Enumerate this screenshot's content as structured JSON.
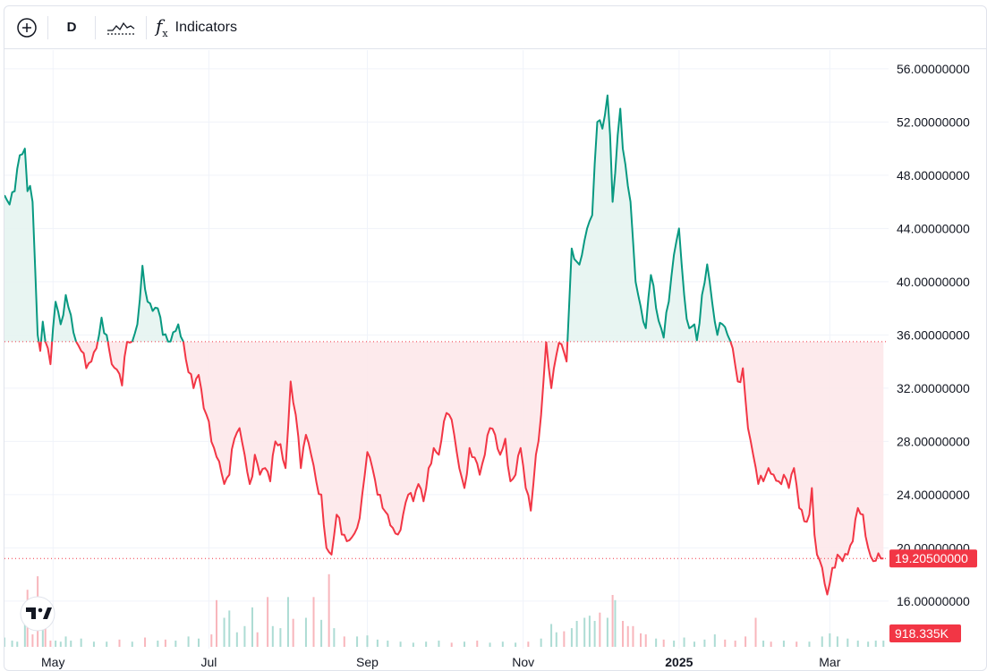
{
  "toolbar": {
    "interval_label": "D",
    "indicators_label": "Indicators",
    "icons": [
      "plus-circle-icon",
      "compare-icon",
      "fx-icon"
    ]
  },
  "colors": {
    "up": "#089981",
    "down": "#f23645",
    "up_fill": "#e6f4f1",
    "down_fill": "#fde8ea",
    "grid": "#f0f3fa",
    "border": "#e0e3eb"
  },
  "logo": {
    "name": "tradingview-logo"
  },
  "chart_data": {
    "type": "line",
    "title": "",
    "baseline": 35.5,
    "last_price_label": "19.20500000",
    "last_price": 19.205,
    "volume_label": "918.335K",
    "y_ticks": [
      "56.00000000",
      "52.00000000",
      "48.00000000",
      "44.00000000",
      "40.00000000",
      "36.00000000",
      "32.00000000",
      "28.00000000",
      "24.00000000",
      "20.00000000",
      "16.00000000"
    ],
    "ylim": [
      12.5,
      57.4
    ],
    "x_ticks": [
      "May",
      "Jul",
      "Sep",
      "Nov",
      "2025",
      "Mar"
    ],
    "x_tick_days": [
      19,
      80,
      142,
      203,
      264,
      323
    ],
    "x_bold": [
      false,
      false,
      false,
      false,
      true,
      false
    ],
    "xlim": [
      0,
      346
    ],
    "keypoints": [
      [
        0,
        46.5
      ],
      [
        2,
        45.8
      ],
      [
        4,
        46.8
      ],
      [
        6,
        49.5
      ],
      [
        8,
        50.0
      ],
      [
        9,
        46.8
      ],
      [
        10,
        47.2
      ],
      [
        11,
        46.0
      ],
      [
        12,
        41.0
      ],
      [
        13,
        36.0
      ],
      [
        14,
        34.8
      ],
      [
        15,
        37.0
      ],
      [
        16,
        35.5
      ],
      [
        17,
        35.0
      ],
      [
        18,
        33.8
      ],
      [
        20,
        38.5
      ],
      [
        22,
        36.8
      ],
      [
        24,
        39.0
      ],
      [
        26,
        37.5
      ],
      [
        28,
        35.5
      ],
      [
        30,
        34.8
      ],
      [
        32,
        33.5
      ],
      [
        34,
        34.0
      ],
      [
        36,
        35.0
      ],
      [
        38,
        37.3
      ],
      [
        40,
        36.0
      ],
      [
        42,
        33.8
      ],
      [
        44,
        33.4
      ],
      [
        46,
        32.2
      ],
      [
        48,
        35.5
      ],
      [
        50,
        35.5
      ],
      [
        52,
        36.8
      ],
      [
        54,
        41.2
      ],
      [
        56,
        38.5
      ],
      [
        58,
        37.8
      ],
      [
        60,
        38.0
      ],
      [
        62,
        36.0
      ],
      [
        64,
        35.5
      ],
      [
        66,
        36.2
      ],
      [
        68,
        36.8
      ],
      [
        70,
        35.5
      ],
      [
        72,
        33.2
      ],
      [
        74,
        32.0
      ],
      [
        76,
        33.0
      ],
      [
        78,
        30.5
      ],
      [
        80,
        29.5
      ],
      [
        82,
        27.5
      ],
      [
        84,
        26.5
      ],
      [
        86,
        24.8
      ],
      [
        88,
        25.5
      ],
      [
        90,
        28.2
      ],
      [
        92,
        29.0
      ],
      [
        94,
        27.0
      ],
      [
        96,
        24.8
      ],
      [
        98,
        27.0
      ],
      [
        100,
        25.5
      ],
      [
        102,
        26.0
      ],
      [
        104,
        25.0
      ],
      [
        106,
        28.0
      ],
      [
        108,
        27.8
      ],
      [
        110,
        26.0
      ],
      [
        112,
        32.5
      ],
      [
        114,
        30.0
      ],
      [
        116,
        26.0
      ],
      [
        118,
        28.5
      ],
      [
        120,
        27.0
      ],
      [
        122,
        25.0
      ],
      [
        124,
        24.0
      ],
      [
        126,
        20.0
      ],
      [
        128,
        19.5
      ],
      [
        130,
        22.5
      ],
      [
        132,
        21.0
      ],
      [
        134,
        20.5
      ],
      [
        136,
        20.8
      ],
      [
        138,
        21.5
      ],
      [
        140,
        24.0
      ],
      [
        142,
        27.2
      ],
      [
        144,
        26.0
      ],
      [
        146,
        24.0
      ],
      [
        148,
        23.0
      ],
      [
        150,
        22.5
      ],
      [
        152,
        21.5
      ],
      [
        154,
        21.0
      ],
      [
        156,
        22.5
      ],
      [
        158,
        24.0
      ],
      [
        160,
        23.5
      ],
      [
        162,
        24.8
      ],
      [
        164,
        23.5
      ],
      [
        166,
        26.0
      ],
      [
        168,
        27.5
      ],
      [
        170,
        27.0
      ],
      [
        172,
        29.5
      ],
      [
        174,
        30.0
      ],
      [
        176,
        28.5
      ],
      [
        178,
        26.0
      ],
      [
        180,
        24.5
      ],
      [
        182,
        27.5
      ],
      [
        184,
        26.8
      ],
      [
        186,
        25.5
      ],
      [
        188,
        27.0
      ],
      [
        190,
        29.0
      ],
      [
        192,
        28.5
      ],
      [
        194,
        27.0
      ],
      [
        196,
        28.2
      ],
      [
        198,
        25.0
      ],
      [
        200,
        25.5
      ],
      [
        202,
        27.5
      ],
      [
        204,
        24.5
      ],
      [
        206,
        22.8
      ],
      [
        208,
        27.0
      ],
      [
        210,
        30.0
      ],
      [
        212,
        35.5
      ],
      [
        214,
        32.0
      ],
      [
        216,
        34.5
      ],
      [
        218,
        35.3
      ],
      [
        220,
        34.0
      ],
      [
        222,
        42.5
      ],
      [
        224,
        41.5
      ],
      [
        226,
        42.0
      ],
      [
        228,
        44.0
      ],
      [
        230,
        45.0
      ],
      [
        232,
        52.0
      ],
      [
        234,
        51.5
      ],
      [
        236,
        54.0
      ],
      [
        237,
        51.0
      ],
      [
        238,
        46.0
      ],
      [
        240,
        51.0
      ],
      [
        241,
        53.0
      ],
      [
        242,
        50.0
      ],
      [
        243,
        48.8
      ],
      [
        245,
        46.0
      ],
      [
        246,
        43.0
      ],
      [
        247,
        40.0
      ],
      [
        248,
        39.0
      ],
      [
        250,
        37.0
      ],
      [
        251,
        36.5
      ],
      [
        253,
        40.5
      ],
      [
        255,
        38.0
      ],
      [
        257,
        36.5
      ],
      [
        258,
        35.8
      ],
      [
        260,
        38.5
      ],
      [
        262,
        42.0
      ],
      [
        264,
        44.0
      ],
      [
        266,
        39.0
      ],
      [
        268,
        36.5
      ],
      [
        270,
        36.8
      ],
      [
        271,
        35.6
      ],
      [
        273,
        39.0
      ],
      [
        275,
        41.3
      ],
      [
        276,
        40.0
      ],
      [
        278,
        37.0
      ],
      [
        279,
        36.0
      ],
      [
        281,
        36.8
      ],
      [
        283,
        36.0
      ],
      [
        285,
        35.0
      ],
      [
        287,
        32.5
      ],
      [
        289,
        33.5
      ],
      [
        291,
        29.0
      ],
      [
        293,
        27.0
      ],
      [
        295,
        24.8
      ],
      [
        297,
        25.0
      ],
      [
        299,
        26.0
      ],
      [
        301,
        25.5
      ],
      [
        303,
        25.0
      ],
      [
        305,
        25.5
      ],
      [
        307,
        24.5
      ],
      [
        309,
        26.0
      ],
      [
        311,
        23.0
      ],
      [
        313,
        22.0
      ],
      [
        315,
        22.5
      ],
      [
        316,
        24.5
      ],
      [
        317,
        21.0
      ],
      [
        318,
        19.5
      ],
      [
        320,
        18.5
      ],
      [
        322,
        16.5
      ],
      [
        324,
        18.5
      ],
      [
        326,
        19.5
      ],
      [
        328,
        19.0
      ],
      [
        330,
        19.5
      ],
      [
        332,
        20.5
      ],
      [
        334,
        23.0
      ],
      [
        336,
        22.5
      ],
      [
        338,
        20.0
      ],
      [
        340,
        19.0
      ],
      [
        342,
        19.6
      ],
      [
        343,
        19.2
      ],
      [
        344,
        19.2
      ]
    ],
    "volume_bars": [
      [
        0,
        0.09
      ],
      [
        3,
        0.06
      ],
      [
        5,
        0.05
      ],
      [
        8,
        0.35
      ],
      [
        9,
        0.55
      ],
      [
        11,
        0.12
      ],
      [
        13,
        0.68
      ],
      [
        15,
        0.25
      ],
      [
        16,
        0.33
      ],
      [
        18,
        0.06
      ],
      [
        20,
        0.06
      ],
      [
        22,
        0.05
      ],
      [
        24,
        0.1
      ],
      [
        26,
        0.06
      ],
      [
        30,
        0.08
      ],
      [
        35,
        0.05
      ],
      [
        40,
        0.05
      ],
      [
        45,
        0.07
      ],
      [
        50,
        0.05
      ],
      [
        55,
        0.09
      ],
      [
        60,
        0.06
      ],
      [
        63,
        0.07
      ],
      [
        67,
        0.06
      ],
      [
        72,
        0.1
      ],
      [
        76,
        0.08
      ],
      [
        81,
        0.12
      ],
      [
        83,
        0.45
      ],
      [
        86,
        0.28
      ],
      [
        88,
        0.35
      ],
      [
        91,
        0.14
      ],
      [
        94,
        0.2
      ],
      [
        97,
        0.38
      ],
      [
        99,
        0.14
      ],
      [
        103,
        0.48
      ],
      [
        105,
        0.2
      ],
      [
        108,
        0.18
      ],
      [
        111,
        0.48
      ],
      [
        113,
        0.27
      ],
      [
        118,
        0.28
      ],
      [
        121,
        0.48
      ],
      [
        124,
        0.26
      ],
      [
        127,
        0.7
      ],
      [
        129,
        0.18
      ],
      [
        133,
        0.1
      ],
      [
        138,
        0.1
      ],
      [
        142,
        0.11
      ],
      [
        146,
        0.07
      ],
      [
        150,
        0.06
      ],
      [
        155,
        0.05
      ],
      [
        160,
        0.04
      ],
      [
        165,
        0.05
      ],
      [
        170,
        0.06
      ],
      [
        175,
        0.04
      ],
      [
        180,
        0.05
      ],
      [
        185,
        0.06
      ],
      [
        190,
        0.04
      ],
      [
        195,
        0.05
      ],
      [
        200,
        0.04
      ],
      [
        205,
        0.05
      ],
      [
        210,
        0.08
      ],
      [
        214,
        0.22
      ],
      [
        216,
        0.14
      ],
      [
        219,
        0.15
      ],
      [
        222,
        0.18
      ],
      [
        224,
        0.25
      ],
      [
        227,
        0.28
      ],
      [
        229,
        0.3
      ],
      [
        231,
        0.25
      ],
      [
        233,
        0.33
      ],
      [
        236,
        0.28
      ],
      [
        238,
        0.5
      ],
      [
        239,
        0.45
      ],
      [
        242,
        0.25
      ],
      [
        244,
        0.2
      ],
      [
        246,
        0.2
      ],
      [
        249,
        0.13
      ],
      [
        251,
        0.12
      ],
      [
        255,
        0.08
      ],
      [
        258,
        0.07
      ],
      [
        262,
        0.06
      ],
      [
        266,
        0.09
      ],
      [
        270,
        0.05
      ],
      [
        274,
        0.07
      ],
      [
        278,
        0.12
      ],
      [
        282,
        0.07
      ],
      [
        286,
        0.06
      ],
      [
        290,
        0.1
      ],
      [
        294,
        0.28
      ],
      [
        297,
        0.06
      ],
      [
        300,
        0.05
      ],
      [
        305,
        0.06
      ],
      [
        310,
        0.05
      ],
      [
        315,
        0.05
      ],
      [
        320,
        0.1
      ],
      [
        323,
        0.13
      ],
      [
        326,
        0.1
      ],
      [
        330,
        0.08
      ],
      [
        334,
        0.06
      ],
      [
        338,
        0.05
      ],
      [
        341,
        0.06
      ],
      [
        344,
        0.06
      ]
    ]
  }
}
